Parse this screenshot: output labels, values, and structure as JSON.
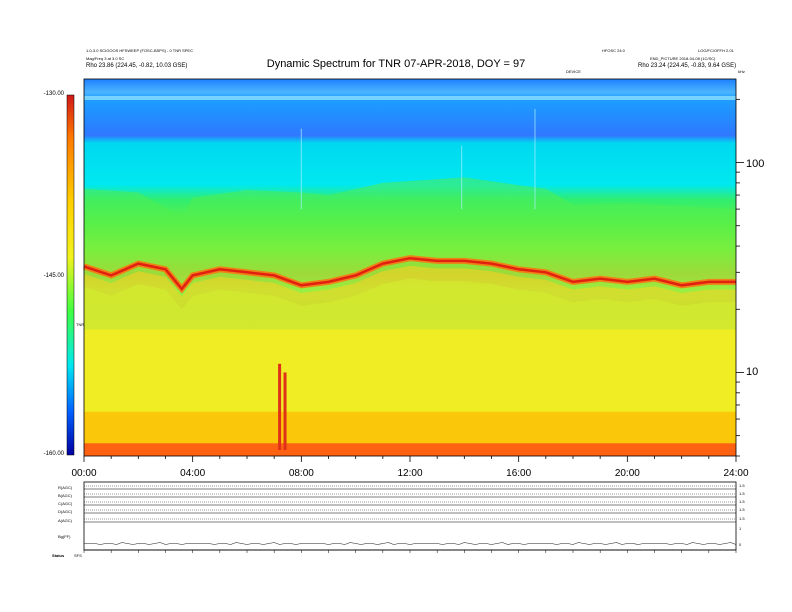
{
  "header": {
    "title": "Dynamic Spectrum for TNR 07-APR-2018, DOY = 97",
    "left_info_1": "1.0-3.0 SCIGOOS HFSWEEP (FOSC-BSPS) - 0 TNR SPEC",
    "left_info_2": "Mag/Freq 3 at 3.0 SC",
    "left_info_3": "Rho 23.86 (224.45, -0.82, 10.03 GSE)",
    "center_right_info": "HFOSC 24.0",
    "center_info": "DEVICE",
    "right_info_1": "LOG/FC/OFFH 2.01",
    "right_info_2": "END_PICTURE 2018-04-08 (1C/SC)",
    "right_info_3": "Rho 23.24 (224.45, -0.83, 9.64 GSE)",
    "right_axis_unit": "kHz"
  },
  "colorbar": {
    "ticks": [
      "-130.00",
      "-145.00",
      "-160.00"
    ],
    "label": "TNR",
    "colors": [
      "#d01818",
      "#ff7a00",
      "#ffd000",
      "#f2f21e",
      "#40ff40",
      "#00e8f0",
      "#0060ff",
      "#0000a0"
    ]
  },
  "chart_data": {
    "type": "heatmap",
    "title": "Dynamic Spectrum for TNR 07-APR-2018, DOY = 97",
    "x_ticks": [
      "00:00",
      "04:00",
      "08:00",
      "12:00",
      "16:00",
      "20:00",
      "24:00"
    ],
    "xlim_hours": [
      0,
      24
    ],
    "y_axis_scale": "log",
    "ylim_khz": [
      4,
      250
    ],
    "y_ticks_khz": [
      10,
      100
    ],
    "y_tick_labels": [
      "10",
      "100"
    ],
    "y_label": "kHz",
    "zlim": [
      -160,
      -130
    ],
    "emission_band_khz": [
      [
        0,
        32
      ],
      [
        1,
        29
      ],
      [
        2,
        33
      ],
      [
        3,
        31
      ],
      [
        3.6,
        25
      ],
      [
        4,
        29
      ],
      [
        5,
        31
      ],
      [
        6,
        30
      ],
      [
        7,
        29
      ],
      [
        8,
        26
      ],
      [
        9,
        27
      ],
      [
        10,
        29
      ],
      [
        11,
        33
      ],
      [
        12,
        35
      ],
      [
        13,
        34
      ],
      [
        14,
        34
      ],
      [
        15,
        33
      ],
      [
        16,
        31
      ],
      [
        17,
        30
      ],
      [
        18,
        27
      ],
      [
        19,
        28
      ],
      [
        20,
        27
      ],
      [
        21,
        28
      ],
      [
        22,
        26
      ],
      [
        23,
        27
      ],
      [
        24,
        27
      ]
    ],
    "green_edge_khz": [
      [
        0,
        75
      ],
      [
        2,
        72
      ],
      [
        3.6,
        55
      ],
      [
        4,
        68
      ],
      [
        6,
        74
      ],
      [
        8,
        72
      ],
      [
        9,
        70
      ],
      [
        11,
        80
      ],
      [
        14,
        85
      ],
      [
        16,
        78
      ],
      [
        17,
        75
      ],
      [
        18,
        63
      ],
      [
        20,
        64
      ],
      [
        22,
        62
      ],
      [
        24,
        60
      ]
    ],
    "low_freq_bursts": [
      [
        7.2,
        11
      ],
      [
        7.4,
        10
      ]
    ],
    "panels": [
      {
        "label": "R(AGC)",
        "right_ticks": [
          "1.5",
          "0"
        ]
      },
      {
        "label": "B(AGC)",
        "right_ticks": [
          "1.5",
          "0"
        ]
      },
      {
        "label": "C(AGC)",
        "right_ticks": [
          "1.5",
          "0"
        ]
      },
      {
        "label": "D(AGC)",
        "right_ticks": [
          "1.5",
          "0"
        ]
      },
      {
        "label": "A(AGC)",
        "right_ticks": [
          "1.5",
          "0"
        ]
      },
      {
        "label": "Bg(FF)",
        "right_ticks": [
          "1",
          "0"
        ]
      }
    ],
    "bottom_left_label": "Status",
    "bottom_left_label_2": "SFS"
  }
}
